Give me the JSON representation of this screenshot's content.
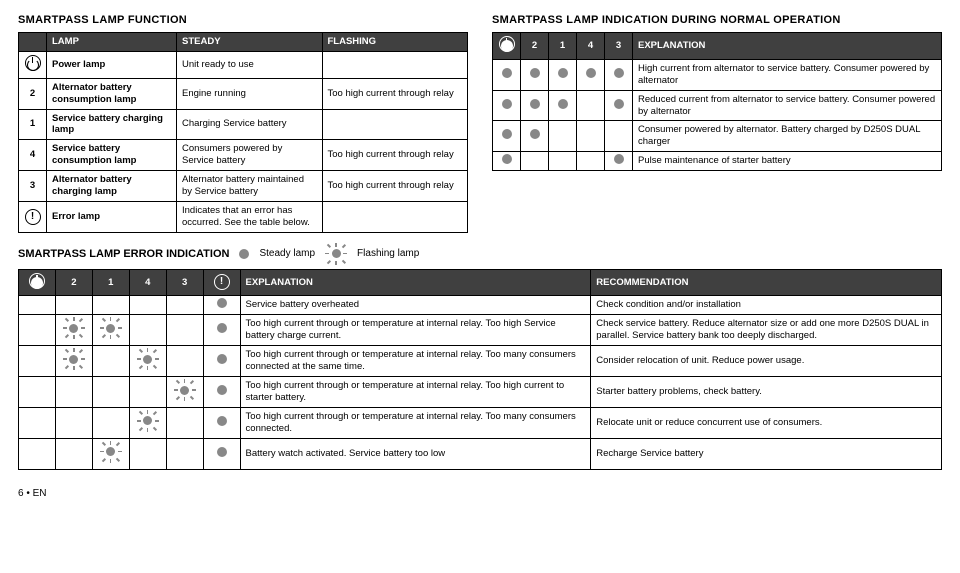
{
  "section1": {
    "title": "SMARTPASS LAMP FUNCTION"
  },
  "section2": {
    "title": "SMARTPASS LAMP INDICATION DURING NORMAL OPERATION"
  },
  "section3": {
    "title": "SMARTPASS LAMP ERROR INDICATION",
    "legend_steady": "Steady lamp",
    "legend_flash": "Flashing lamp"
  },
  "t1": {
    "headers": {
      "lamp": "LAMP",
      "steady": "STEADY",
      "flashing": "FLASHING"
    },
    "rows": [
      {
        "sym": "power",
        "label": "Power lamp",
        "steady": "Unit ready to use",
        "flashing": ""
      },
      {
        "sym": "2",
        "label": "Alternator battery consumption lamp",
        "steady": "Engine running",
        "flashing": "Too high current through relay"
      },
      {
        "sym": "1",
        "label": "Service battery charging lamp",
        "steady": "Charging Service battery",
        "flashing": ""
      },
      {
        "sym": "4",
        "label": "Service battery consumption lamp",
        "steady": "Consumers powered by Service battery",
        "flashing": "Too high current through relay"
      },
      {
        "sym": "3",
        "label": "Alternator battery charging lamp",
        "steady": "Alternator battery maintained by Service battery",
        "flashing": "Too high current through relay"
      },
      {
        "sym": "error",
        "label": "Error lamp",
        "steady": "Indicates that an error has occurred. See the table below.",
        "flashing": ""
      }
    ]
  },
  "t2": {
    "headers": {
      "c1": "2",
      "c2": "1",
      "c3": "4",
      "c4": "3",
      "expl": "EXPLANATION"
    },
    "rows": [
      {
        "d": [
          1,
          1,
          1,
          1,
          1
        ],
        "text": "High current from alternator to service battery. Consumer powered by alternator"
      },
      {
        "d": [
          1,
          1,
          1,
          0,
          1
        ],
        "text": "Reduced current from alternator to service battery. Consumer powered by alternator"
      },
      {
        "d": [
          1,
          1,
          0,
          0,
          0
        ],
        "text": "Consumer powered by alternator. Battery charged by D250S DUAL charger"
      },
      {
        "d": [
          1,
          0,
          0,
          0,
          1
        ],
        "text": "Pulse maintenance of starter battery"
      }
    ]
  },
  "t3": {
    "headers": {
      "c1": "2",
      "c2": "1",
      "c3": "4",
      "c4": "3",
      "expl": "EXPLANATION",
      "rec": "RECOMMENDATION"
    },
    "rows": [
      {
        "p": [
          0,
          0,
          0,
          0,
          0,
          "s"
        ],
        "expl": "Service battery overheated",
        "rec": "Check condition and/or installation"
      },
      {
        "p": [
          0,
          "f",
          "f",
          0,
          0,
          "s"
        ],
        "expl": "Too high current through or temperature at internal relay. Too high Service battery charge current.",
        "rec": "Check service battery. Reduce alternator size or add one more D250S DUAL in parallel. Service battery bank too deeply discharged."
      },
      {
        "p": [
          0,
          "f",
          0,
          "f",
          0,
          "s"
        ],
        "expl": "Too high current through or temperature at internal relay. Too many consumers connected at the same time.",
        "rec": "Consider relocation of unit. Reduce power usage."
      },
      {
        "p": [
          0,
          0,
          0,
          0,
          "f",
          "s"
        ],
        "expl": "Too high current through or temperature at internal relay. Too high current to starter battery.",
        "rec": "Starter battery problems, check battery."
      },
      {
        "p": [
          0,
          0,
          0,
          "f",
          0,
          "s"
        ],
        "expl": "Too high current through or temperature at internal relay. Too many consumers connected.",
        "rec": "Relocate unit or reduce concurrent use of consumers."
      },
      {
        "p": [
          0,
          0,
          "f",
          0,
          0,
          "s"
        ],
        "expl": "Battery watch activated. Service battery too low",
        "rec": "Recharge Service battery"
      }
    ]
  },
  "footer": "6  •  EN"
}
